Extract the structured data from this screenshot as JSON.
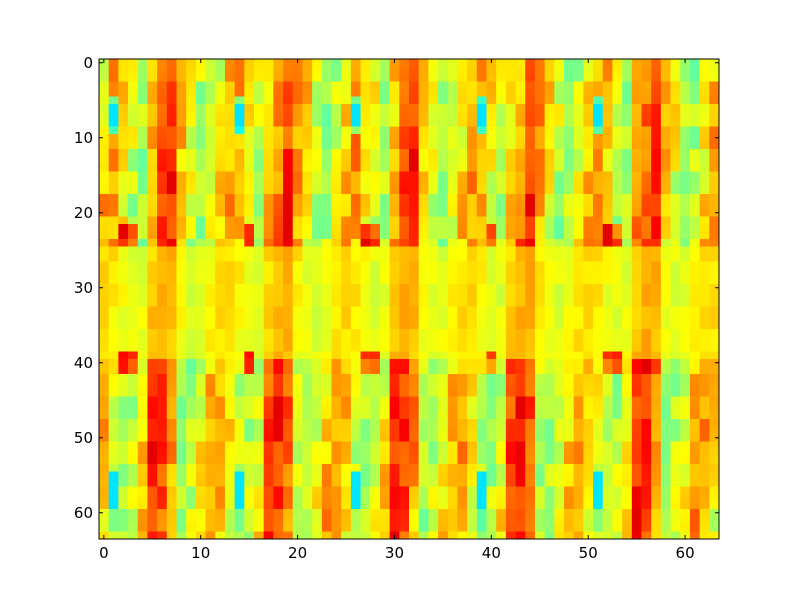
{
  "chart_data": {
    "type": "heatmap",
    "title": "",
    "xlabel": "",
    "ylabel": "",
    "grid": false,
    "colormap": "jet",
    "n_cols": 64,
    "n_rows": 64,
    "xlim": [
      -0.5,
      63.5
    ],
    "ylim": [
      63.5,
      -0.5
    ],
    "x_ticks": [
      0,
      10,
      20,
      30,
      40,
      50,
      60
    ],
    "y_ticks": [
      0,
      10,
      20,
      30,
      40,
      50,
      60
    ],
    "x_tick_labels": [
      "0",
      "10",
      "20",
      "30",
      "40",
      "50",
      "60"
    ],
    "y_tick_labels": [
      "0",
      "10",
      "20",
      "30",
      "40",
      "50",
      "60"
    ],
    "value_range": [
      -1,
      1
    ],
    "pattern": {
      "period_cols": 12.5,
      "blue_spot_rows": [
        6,
        8,
        56,
        58
      ],
      "red_spot_rows": [
        23,
        40
      ],
      "bright_bands_rows": [
        [
          0,
          24
        ],
        [
          40,
          63
        ]
      ],
      "calm_band_rows": [
        25,
        39
      ]
    }
  },
  "colors": {
    "background": "#ffffff",
    "axes_edge": "#000000"
  }
}
